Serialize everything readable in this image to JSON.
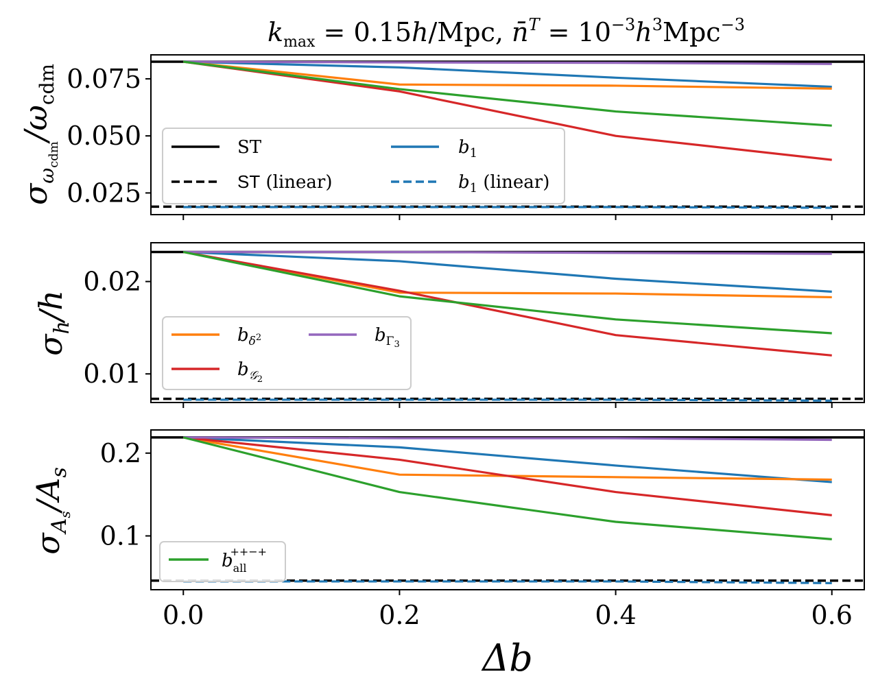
{
  "chart_data": {
    "type": "line",
    "title": "k_max = 0.15h/Mpc, n̄^T = 10^-3 h^3 Mpc^-3",
    "xlabel": "Δb",
    "x": [
      0.0,
      0.2,
      0.4,
      0.6
    ],
    "xlim": [
      -0.03,
      0.63
    ],
    "xticks": [
      0.0,
      0.2,
      0.4,
      0.6
    ],
    "xtick_labels": [
      "0.0",
      "0.2",
      "0.4",
      "0.6"
    ],
    "colors": {
      "ST": "#000000",
      "b1": "#1f77b4",
      "bdelta2": "#ff7f0e",
      "bG2": "#d62728",
      "bGamma3": "#9467bd",
      "ball": "#2ca02c"
    },
    "panels": [
      {
        "ylabel": "σ_ωcdm/ω_cdm",
        "ylim": [
          0.0155,
          0.0855
        ],
        "yticks": [
          0.025,
          0.05,
          0.075
        ],
        "ytick_labels": [
          "0.025",
          "0.050",
          "0.075"
        ],
        "hlines": [
          {
            "name": "ST",
            "value": 0.0825,
            "style": "solid",
            "color_key": "ST"
          },
          {
            "name": "ST (linear)",
            "value": 0.019,
            "style": "dashed",
            "color_key": "ST"
          }
        ],
        "series": [
          {
            "name": "b1",
            "color_key": "b1",
            "values": [
              0.0825,
              0.08,
              0.0755,
              0.0715
            ]
          },
          {
            "name": "b1 (linear)",
            "color_key": "b1",
            "dashed": true,
            "values": [
              0.0188,
              0.0188,
              0.0188,
              0.0185
            ]
          },
          {
            "name": "bdelta2",
            "color_key": "bdelta2",
            "values": [
              0.0825,
              0.0725,
              0.072,
              0.0707
            ]
          },
          {
            "name": "bG2",
            "color_key": "bG2",
            "values": [
              0.0825,
              0.0695,
              0.05,
              0.0395
            ]
          },
          {
            "name": "bGamma3",
            "color_key": "bGamma3",
            "values": [
              0.0825,
              0.0822,
              0.082,
              0.0815
            ]
          },
          {
            "name": "ball",
            "color_key": "ball",
            "values": [
              0.0825,
              0.0705,
              0.0607,
              0.0545
            ]
          }
        ],
        "legend": {
          "location": "lower-left",
          "columns": 2,
          "entries": [
            {
              "label": "ST",
              "color_key": "ST",
              "dashed": false
            },
            {
              "label": "ST (linear)",
              "color_key": "ST",
              "dashed": true
            },
            {
              "label": "b1",
              "color_key": "b1",
              "dashed": false
            },
            {
              "label": "b1 (linear)",
              "color_key": "b1",
              "dashed": true
            }
          ]
        }
      },
      {
        "ylabel": "σ_h/h",
        "ylim": [
          0.0069,
          0.0242
        ],
        "yticks": [
          0.01,
          0.02
        ],
        "ytick_labels": [
          "0.01",
          "0.02"
        ],
        "hlines": [
          {
            "name": "ST",
            "value": 0.0232,
            "style": "solid",
            "color_key": "ST"
          },
          {
            "name": "ST (linear)",
            "value": 0.0073,
            "style": "dashed",
            "color_key": "ST"
          }
        ],
        "series": [
          {
            "name": "b1",
            "color_key": "b1",
            "values": [
              0.0232,
              0.0222,
              0.0203,
              0.0189
            ]
          },
          {
            "name": "b1 (linear)",
            "color_key": "b1",
            "dashed": true,
            "values": [
              0.0072,
              0.0072,
              0.0072,
              0.0071
            ]
          },
          {
            "name": "bdelta2",
            "color_key": "bdelta2",
            "values": [
              0.0232,
              0.0188,
              0.0187,
              0.0183
            ]
          },
          {
            "name": "bG2",
            "color_key": "bG2",
            "values": [
              0.0232,
              0.019,
              0.0142,
              0.012
            ]
          },
          {
            "name": "bGamma3",
            "color_key": "bGamma3",
            "values": [
              0.0232,
              0.0232,
              0.0231,
              0.023
            ]
          },
          {
            "name": "ball",
            "color_key": "ball",
            "values": [
              0.0232,
              0.0184,
              0.0159,
              0.0144
            ]
          }
        ],
        "legend": {
          "location": "lower-left",
          "columns": 2,
          "entries": [
            {
              "label": "bδ2",
              "color_key": "bdelta2",
              "dashed": false
            },
            {
              "label": "bGamma3",
              "color_key": "bGamma3",
              "dashed": false
            },
            {
              "label": "bG2",
              "color_key": "bG2",
              "dashed": false
            }
          ]
        }
      },
      {
        "ylabel": "σ_As/A_s",
        "ylim": [
          0.035,
          0.228
        ],
        "yticks": [
          0.1,
          0.2
        ],
        "ytick_labels": [
          "0.1",
          "0.2"
        ],
        "hlines": [
          {
            "name": "ST",
            "value": 0.219,
            "style": "solid",
            "color_key": "ST"
          },
          {
            "name": "ST (linear)",
            "value": 0.046,
            "style": "dashed",
            "color_key": "ST"
          }
        ],
        "series": [
          {
            "name": "b1",
            "color_key": "b1",
            "values": [
              0.219,
              0.207,
              0.185,
              0.165
            ]
          },
          {
            "name": "b1 (linear)",
            "color_key": "b1",
            "dashed": true,
            "values": [
              0.045,
              0.045,
              0.045,
              0.043
            ]
          },
          {
            "name": "bdelta2",
            "color_key": "bdelta2",
            "values": [
              0.219,
              0.174,
              0.171,
              0.168
            ]
          },
          {
            "name": "bG2",
            "color_key": "bG2",
            "values": [
              0.219,
              0.192,
              0.153,
              0.125
            ]
          },
          {
            "name": "bGamma3",
            "color_key": "bGamma3",
            "values": [
              0.219,
              0.218,
              0.218,
              0.216
            ]
          },
          {
            "name": "ball",
            "color_key": "ball",
            "values": [
              0.219,
              0.153,
              0.117,
              0.096
            ]
          }
        ],
        "legend": {
          "location": "lower-left",
          "columns": 1,
          "entries": [
            {
              "label": "b_all^(++-+)",
              "color_key": "ball",
              "dashed": false
            }
          ]
        }
      }
    ]
  }
}
